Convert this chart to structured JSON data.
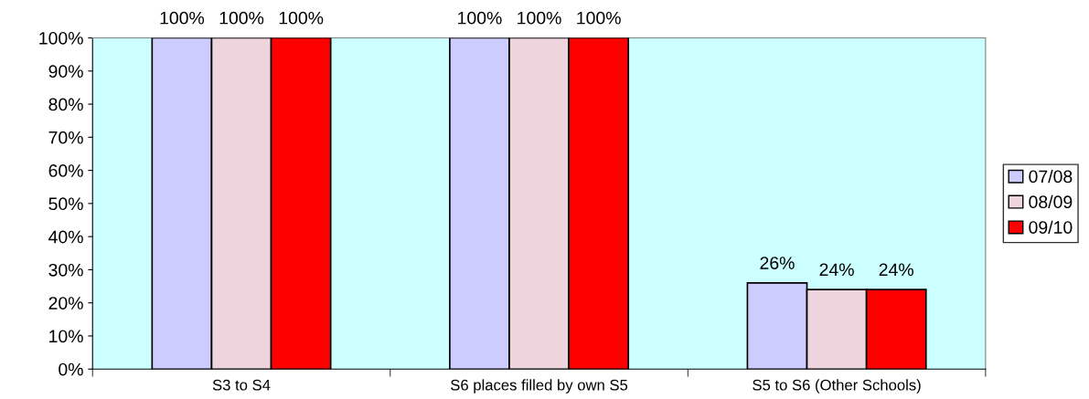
{
  "chart_data": {
    "type": "bar",
    "categories": [
      "S3 to S4",
      "S6 places filled by own S5",
      "S5 to S6 (Other Schools)"
    ],
    "series": [
      {
        "name": "07/08",
        "color": "#ccccff",
        "values": [
          100,
          100,
          26
        ],
        "value_labels": [
          "100%",
          "100%",
          "26%"
        ]
      },
      {
        "name": "08/09",
        "color": "#eed4dc",
        "values": [
          100,
          100,
          24
        ],
        "value_labels": [
          "100%",
          "100%",
          "24%"
        ]
      },
      {
        "name": "09/10",
        "color": "#ff0000",
        "values": [
          100,
          100,
          24
        ],
        "value_labels": [
          "100%",
          "100%",
          "24%"
        ]
      }
    ],
    "ylim": [
      0,
      100
    ],
    "yticks": [
      {
        "value": 0,
        "label": "0%"
      },
      {
        "value": 10,
        "label": "10%"
      },
      {
        "value": 20,
        "label": "20%"
      },
      {
        "value": 30,
        "label": "30%"
      },
      {
        "value": 40,
        "label": "40%"
      },
      {
        "value": 50,
        "label": "50%"
      },
      {
        "value": 60,
        "label": "60%"
      },
      {
        "value": 70,
        "label": "70%"
      },
      {
        "value": 80,
        "label": "80%"
      },
      {
        "value": 90,
        "label": "90%"
      },
      {
        "value": 100,
        "label": "100%"
      }
    ],
    "grid": false,
    "legend": "right"
  }
}
